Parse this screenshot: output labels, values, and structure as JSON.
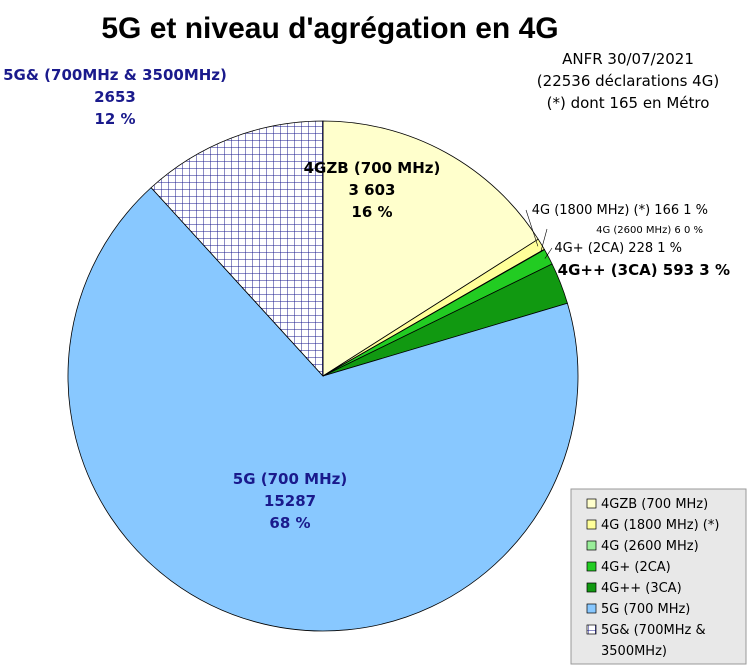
{
  "chart_data": {
    "type": "pie",
    "title": "5G et niveau d'agrégation en 4G",
    "annotations": [
      "ANFR 30/07/2021",
      "(22536 déclarations 4G)",
      "(*) dont 165 en Métro"
    ],
    "legend_position": "bottom-right",
    "slices": [
      {
        "legend": "4GZB (700 MHz)",
        "value": 3603,
        "percent": 16,
        "label": [
          "4GZB (700 MHz)",
          "3 603",
          "16 %"
        ],
        "color": "#ffffcc",
        "pattern": "none"
      },
      {
        "legend": "4G (1800 MHz) (*)",
        "value": 166,
        "percent": 1,
        "label": [
          "4G (1800 MHz) (*) 166 1 %"
        ],
        "color": "#ffff99",
        "pattern": "none"
      },
      {
        "legend": "4G (2600 MHz)",
        "value": 6,
        "percent": 0,
        "label": [
          "4G (2600 MHz) 6 0 %"
        ],
        "color": "#99ee99",
        "pattern": "none"
      },
      {
        "legend": "4G+ (2CA)",
        "value": 228,
        "percent": 1,
        "label": [
          "4G+ (2CA) 228 1 %"
        ],
        "color": "#22cc22",
        "pattern": "none"
      },
      {
        "legend": "4G++ (3CA)",
        "value": 593,
        "percent": 3,
        "label": [
          "4G++ (3CA) 593 3 %"
        ],
        "color": "#119911",
        "pattern": "none"
      },
      {
        "legend": "5G (700 MHz)",
        "value": 15287,
        "percent": 68,
        "label": [
          "5G (700 MHz)",
          "15287",
          "68 %"
        ],
        "color": "#88c8ff",
        "pattern": "none"
      },
      {
        "legend": "5G& (700MHz & 3500MHz)",
        "value": 2653,
        "percent": 12,
        "label": [
          "5G& (700MHz & 3500MHz)",
          "2653",
          "12 %"
        ],
        "color": "#ffffff",
        "pattern": "grid"
      }
    ],
    "colors": {
      "label_blue": "#1a1a8c",
      "label_black": "#000000",
      "pattern_stroke": "#1a1a8c",
      "legend_bg": "#e8e8e8"
    }
  }
}
